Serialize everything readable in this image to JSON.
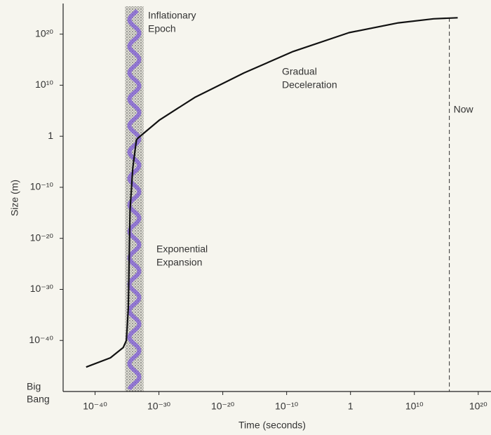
{
  "chart_data": {
    "type": "line",
    "x_label": "Time (seconds)",
    "y_label": "Size (m)",
    "log_x": true,
    "log_y": true,
    "x": [
      4e-42,
      2.5e-38,
      2.5e-36,
      8e-36,
      1.6e-35,
      3e-35,
      8e-35,
      3e-34,
      6e-34,
      1.3e-30,
      4e-25,
      2e-17,
      1e-09,
      0.6,
      30000000.0,
      10000000000000.0,
      6e+16
    ],
    "values": [
      6e-46,
      4e-44,
      4e-42,
      1e-40,
      1.6e-34,
      3e-15,
      6e-07,
      0.2,
      0.5,
      1600,
      40000000.0,
      2500000000000.0,
      4e+16,
      2e+20,
      1.6e+22,
      1e+23,
      1.6e+23
    ],
    "color": "#111111",
    "xlim": [
      1e-45,
      1e+22
    ],
    "ylim": [
      1e-50,
      1e+26
    ],
    "xticks": [
      {
        "value": 1e-40,
        "label": "10⁻⁴⁰"
      },
      {
        "value": 1e-30,
        "label": "10⁻³⁰"
      },
      {
        "value": 1e-20,
        "label": "10⁻²⁰"
      },
      {
        "value": 1e-10,
        "label": "10⁻¹⁰"
      },
      1,
      {
        "value": 10000000000.0,
        "label": "10¹⁰"
      },
      {
        "value": 1e+20,
        "label": "10²⁰"
      }
    ],
    "yticks": [
      {
        "value": 1e+20,
        "label": "10²⁰"
      },
      {
        "value": 10000000000.0,
        "label": "10¹⁰"
      },
      1,
      {
        "value": 1e-10,
        "label": "10⁻¹⁰"
      },
      {
        "value": 1e-20,
        "label": "10⁻²⁰"
      },
      {
        "value": 1e-30,
        "label": "10⁻³⁰"
      },
      {
        "value": 1e-40,
        "label": "10⁻⁴⁰"
      }
    ],
    "shaded_region": {
      "x": [
        5e-36,
        4e-33
      ],
      "color": "#8a8a84"
    },
    "now_line": {
      "x": 3000000000000000.0,
      "label": "Now"
    },
    "origin_label": [
      "Big",
      "Bang"
    ],
    "annotations": [
      [
        "Inflationary",
        "Epoch"
      ],
      [
        "Gradual",
        "Deceleration"
      ],
      [
        "Exponential",
        "Expansion"
      ]
    ]
  }
}
